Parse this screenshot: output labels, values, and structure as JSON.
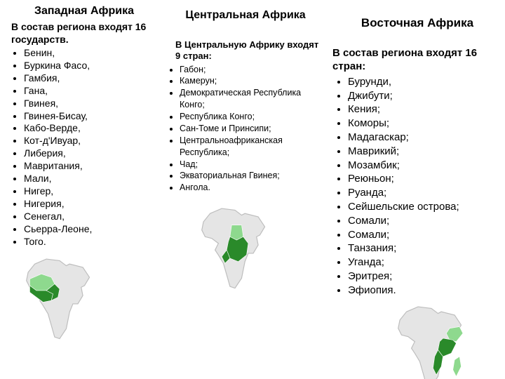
{
  "west": {
    "title": "Западная Африка",
    "intro": "В состав региона входят 16 государств.",
    "items": [
      "Бенин,",
      "Буркина Фасо,",
      "Гамбия,",
      "Гана,",
      "Гвинея,",
      "Гвинея-Бисау,",
      "Кабо-Верде,",
      "Кот-д'Ивуар,",
      "Либерия,",
      "Мавритания,",
      "Мали,",
      "Нигер,",
      "Нигерия,",
      "Сенегал,",
      "Сьерра-Леоне,",
      "Того."
    ],
    "map": {
      "base_fill": "#e5e5e5",
      "base_stroke": "#bdbdbd",
      "region_dark": "#2a8a2a",
      "region_light": "#8ed98e"
    }
  },
  "center": {
    "title": "Центральная Африка",
    "intro": "В Центральную Африку входят 9 стран:",
    "items": [
      "Габон;",
      "Камерун;",
      "Демократическая Республика Конго;",
      "Республика Конго;",
      "Сан-Томе и Принсипи;",
      "Центральноафриканская Республика;",
      "Чад;",
      "Экваториальная Гвинея;",
      "Ангола."
    ],
    "map": {
      "base_fill": "#e5e5e5",
      "base_stroke": "#bdbdbd",
      "region_dark": "#2a8a2a",
      "region_light": "#8ed98e"
    }
  },
  "east": {
    "title": "Восточная Африка",
    "intro": "В состав региона входят 16 стран:",
    "items": [
      "Бурунди,",
      "Джибути;",
      "Кения;",
      "Коморы;",
      "Мадагаскар;",
      "Маврикий;",
      "Мозамбик;",
      "Реюньон;",
      "Руанда;",
      "Сейшельские острова;",
      "Сомали;",
      "Сомали;",
      "Танзания;",
      "Уганда;",
      "Эритрея;",
      "Эфиопия."
    ],
    "map": {
      "base_fill": "#e5e5e5",
      "base_stroke": "#bdbdbd",
      "region_dark": "#2a8a2a",
      "region_light": "#8ed98e"
    }
  }
}
